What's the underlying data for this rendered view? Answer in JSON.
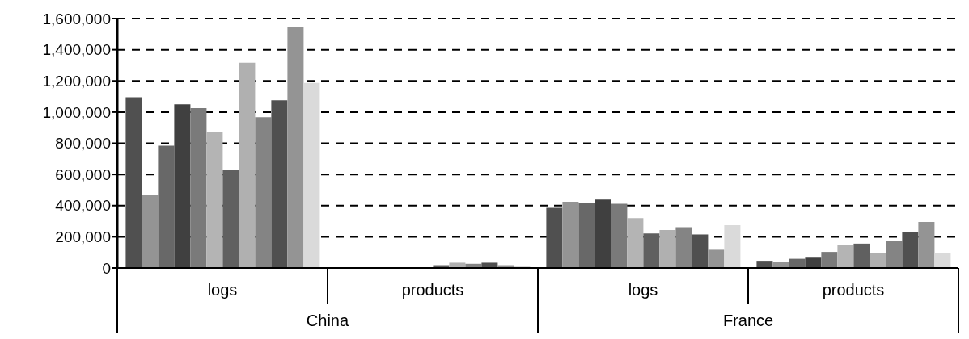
{
  "chart_data": {
    "type": "bar",
    "categories": [
      "logs",
      "products",
      "logs",
      "products"
    ],
    "annotations": [
      "China",
      "France"
    ],
    "series": [
      {
        "color": "#505050",
        "values": [
          1095000,
          null,
          386000,
          46000
        ]
      },
      {
        "color": "#949494",
        "values": [
          468000,
          null,
          425000,
          39000
        ]
      },
      {
        "color": "#686868",
        "values": [
          784000,
          null,
          418000,
          59000
        ]
      },
      {
        "color": "#404040",
        "values": [
          1050000,
          null,
          439000,
          66000
        ]
      },
      {
        "color": "#7a7a7a",
        "values": [
          1025000,
          null,
          412000,
          103000
        ]
      },
      {
        "color": "#b4b4b4",
        "values": [
          875000,
          null,
          320000,
          149000
        ]
      },
      {
        "color": "#606060",
        "values": [
          629000,
          18000,
          222000,
          156000
        ]
      },
      {
        "color": "#b0b0b0",
        "values": [
          1317000,
          34000,
          244000,
          98000
        ]
      },
      {
        "color": "#848484",
        "values": [
          967000,
          27000,
          261000,
          171000
        ]
      },
      {
        "color": "#505050",
        "values": [
          1076000,
          34000,
          215000,
          229000
        ]
      },
      {
        "color": "#949494",
        "values": [
          1543000,
          18000,
          117000,
          295000
        ]
      },
      {
        "color": "#dadada",
        "values": [
          1187000,
          13000,
          274000,
          98000
        ]
      }
    ],
    "ylim": [
      0,
      1600000
    ],
    "yticks": [
      0,
      {
        "value": 200000,
        "label": "200,000"
      },
      {
        "value": 400000,
        "label": "400,000"
      },
      {
        "value": 600000,
        "label": "600,000"
      },
      {
        "value": 800000,
        "label": "800,000"
      },
      {
        "value": 1000000,
        "label": "1,000,000"
      },
      {
        "value": 1200000,
        "label": "1,200,000"
      },
      {
        "value": 1400000,
        "label": "1,400,000"
      },
      {
        "value": 1600000,
        "label": "1,600,000"
      }
    ],
    "grid": "y",
    "legend": false
  }
}
